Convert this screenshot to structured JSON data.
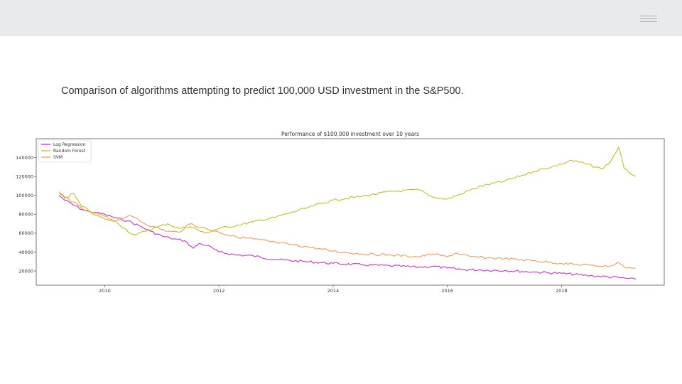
{
  "header": {
    "menu_icon": "hamburger-menu-icon"
  },
  "slide": {
    "heading": "Comparison of algorithms attempting to predict 100,000 USD investment in the S&P500."
  },
  "colors": {
    "background": "#ffffff",
    "topbar": "#e8eaeb",
    "log_regression": "#cc33cc",
    "random_forest": "#c2c21f",
    "svm": "#f59a52"
  },
  "chart_data": {
    "type": "line",
    "title": "Performance of $100,000 investment over 10 years",
    "xlabel": "",
    "ylabel": "",
    "x_ticks": [
      "2010",
      "2012",
      "2014",
      "2016",
      "2018"
    ],
    "y_ticks": [
      "20000",
      "40000",
      "60000",
      "80000",
      "100000",
      "120000",
      "140000"
    ],
    "xlim": [
      2008.8,
      2019.8
    ],
    "ylim": [
      5000,
      160000
    ],
    "grid": false,
    "legend_position": "top-left",
    "series": [
      {
        "name": "Log Regression",
        "color": "#cc33cc",
        "x": [
          2009.2,
          2009.3,
          2009.45,
          2009.6,
          2009.8,
          2010.0,
          2010.2,
          2010.4,
          2010.6,
          2010.8,
          2011.0,
          2011.2,
          2011.4,
          2011.55,
          2011.65,
          2011.8,
          2012.0,
          2012.3,
          2012.6,
          2013.0,
          2013.5,
          2014.0,
          2014.5,
          2015.0,
          2015.5,
          2015.75,
          2016.0,
          2016.3,
          2016.6,
          2017.0,
          2017.5,
          2018.0,
          2018.5,
          2019.0,
          2019.3
        ],
        "values": [
          100000,
          95000,
          90000,
          85000,
          82000,
          80000,
          76000,
          73000,
          68000,
          62000,
          57000,
          54000,
          52000,
          44000,
          49000,
          47000,
          40000,
          37000,
          36000,
          32000,
          30000,
          28000,
          26500,
          25500,
          24000,
          25000,
          23000,
          21500,
          21000,
          20500,
          19000,
          17500,
          15000,
          13000,
          11000
        ]
      },
      {
        "name": "Random Forest",
        "color": "#c2c21f",
        "x": [
          2009.2,
          2009.3,
          2009.45,
          2009.6,
          2009.8,
          2010.0,
          2010.2,
          2010.35,
          2010.45,
          2010.55,
          2010.7,
          2010.9,
          2011.1,
          2011.3,
          2011.5,
          2011.75,
          2012.0,
          2012.3,
          2012.6,
          2013.0,
          2013.5,
          2014.0,
          2014.5,
          2015.0,
          2015.5,
          2015.75,
          2016.0,
          2016.3,
          2016.6,
          2017.0,
          2017.5,
          2018.0,
          2018.15,
          2018.4,
          2018.7,
          2018.85,
          2019.0,
          2019.1,
          2019.3
        ],
        "values": [
          104000,
          97000,
          102000,
          88000,
          82000,
          78000,
          72000,
          65000,
          60000,
          58000,
          62000,
          66000,
          70000,
          65000,
          67000,
          60000,
          65000,
          68000,
          72000,
          77000,
          86000,
          95000,
          99000,
          104000,
          106000,
          98000,
          96000,
          103000,
          110000,
          115000,
          125000,
          133000,
          137000,
          134000,
          128000,
          135000,
          151000,
          128000,
          120000
        ]
      },
      {
        "name": "SVM",
        "color": "#f59a52",
        "x": [
          2009.2,
          2009.3,
          2009.45,
          2009.6,
          2009.8,
          2010.0,
          2010.2,
          2010.4,
          2010.55,
          2010.7,
          2010.9,
          2011.1,
          2011.3,
          2011.5,
          2011.7,
          2012.0,
          2012.3,
          2012.6,
          2013.0,
          2013.5,
          2014.0,
          2014.5,
          2015.0,
          2015.5,
          2015.75,
          2016.0,
          2016.15,
          2016.4,
          2016.7,
          2017.0,
          2017.5,
          2018.0,
          2018.5,
          2018.85,
          2019.0,
          2019.1,
          2019.3
        ],
        "values": [
          102000,
          98000,
          93000,
          86000,
          80000,
          75000,
          73000,
          78000,
          76000,
          70000,
          66000,
          62000,
          61000,
          70000,
          66000,
          61000,
          56000,
          54000,
          50000,
          46000,
          41000,
          38000,
          37000,
          35000,
          38000,
          35000,
          39000,
          35000,
          34000,
          33000,
          31000,
          28000,
          26000,
          25000,
          29000,
          24000,
          23000
        ]
      }
    ]
  }
}
